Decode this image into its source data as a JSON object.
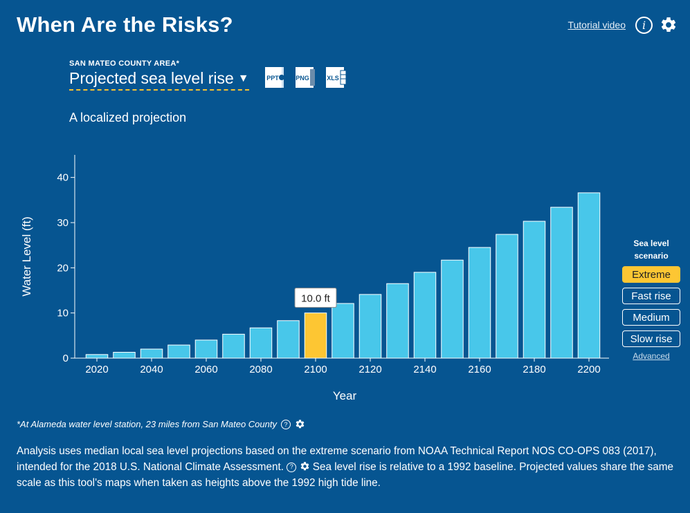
{
  "header": {
    "title": "When Are the Risks?",
    "tutorial_label": "Tutorial video",
    "info_glyph": "i",
    "info_icon": "info-icon",
    "settings_icon": "gear-icon"
  },
  "controls": {
    "area_label": "SAN MATEO COUNTY AREA*",
    "metric_label": "Projected sea level rise",
    "downloads": [
      "PPT",
      "PNG",
      "XLS"
    ]
  },
  "subtitle": "A localized projection",
  "colors": {
    "background": "#065591",
    "bar": "#48c7ea",
    "highlight": "#fdc633"
  },
  "chart_data": {
    "type": "bar",
    "xlabel": "Year",
    "ylabel": "Water Level (ft)",
    "x": [
      2020,
      2030,
      2040,
      2050,
      2060,
      2070,
      2080,
      2090,
      2100,
      2110,
      2120,
      2130,
      2140,
      2150,
      2160,
      2170,
      2180,
      2190,
      2200
    ],
    "values": [
      0.8,
      1.3,
      2.0,
      2.9,
      4.0,
      5.3,
      6.7,
      8.3,
      10.0,
      12.1,
      14.1,
      16.5,
      19.0,
      21.7,
      24.5,
      27.4,
      30.3,
      33.4,
      36.6
    ],
    "highlight_index": 8,
    "tooltip": "10.0 ft",
    "ylim": [
      0,
      45
    ],
    "yticks": [
      0,
      10,
      20,
      30,
      40
    ],
    "xticks": [
      2020,
      2040,
      2060,
      2080,
      2100,
      2120,
      2140,
      2160,
      2180,
      2200
    ],
    "grid": false
  },
  "legend": {
    "title_line1": "Sea level",
    "title_line2": "scenario",
    "options": [
      "Extreme",
      "Fast rise",
      "Medium",
      "Slow rise"
    ],
    "selected": "Extreme",
    "advanced_label": "Advanced"
  },
  "footnote": {
    "text": "*At Alameda water level station, 23 miles from San Mateo County",
    "help_glyph": "?"
  },
  "analysis": {
    "part1": "Analysis uses median local sea level projections based on the extreme scenario from NOAA Technical Report NOS CO-OPS 083 (2017), intended for the 2018 U.S. National Climate Assessment.",
    "help_glyph": "?",
    "part2": "Sea level rise is relative to a 1992 baseline. Projected values share the same scale as this tool's maps when taken as heights above the 1992 high tide line."
  }
}
